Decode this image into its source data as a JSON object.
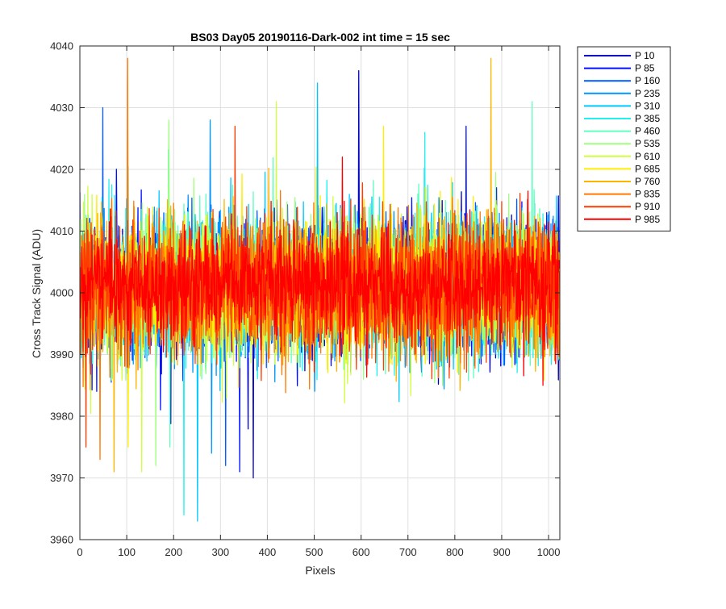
{
  "chart_data": {
    "type": "line",
    "title": "BS03 Day05 20190116-Dark-002 int time = 15 sec",
    "xlabel": "Pixels",
    "ylabel": "Cross Track Signal (ADU)",
    "xlim": [
      0,
      1024
    ],
    "ylim": [
      3960,
      4040
    ],
    "xticks": [
      0,
      100,
      200,
      300,
      400,
      500,
      600,
      700,
      800,
      900,
      1000
    ],
    "yticks": [
      3960,
      3970,
      3980,
      3990,
      4000,
      4010,
      4020,
      4030,
      4040
    ],
    "grid": true,
    "legend_position": "outside-top-right",
    "series": [
      {
        "name": "P 10",
        "color": "#0000c8",
        "mean": 4001,
        "spread": 5.5,
        "min": 3970,
        "max": 4036
      },
      {
        "name": "P 85",
        "color": "#0010ff",
        "mean": 4001,
        "spread": 5.5,
        "min": 3971,
        "max": 4027
      },
      {
        "name": "P 160",
        "color": "#005aff",
        "mean": 4001,
        "spread": 5.5,
        "min": 3972,
        "max": 4030
      },
      {
        "name": "P 235",
        "color": "#0096ff",
        "mean": 4001,
        "spread": 5.5,
        "min": 3974,
        "max": 4028
      },
      {
        "name": "P 310",
        "color": "#00c8ff",
        "mean": 4001,
        "spread": 5.5,
        "min": 3963,
        "max": 4034
      },
      {
        "name": "P 385",
        "color": "#20f0f0",
        "mean": 4001,
        "spread": 5.5,
        "min": 3964,
        "max": 4026
      },
      {
        "name": "P 460",
        "color": "#60ffc0",
        "mean": 4001,
        "spread": 5.5,
        "min": 3975,
        "max": 4031
      },
      {
        "name": "P 535",
        "color": "#a0ff80",
        "mean": 4001,
        "spread": 5.5,
        "min": 3972,
        "max": 4028
      },
      {
        "name": "P 610",
        "color": "#d0ff40",
        "mean": 4001,
        "spread": 5.5,
        "min": 3971,
        "max": 4031
      },
      {
        "name": "P 685",
        "color": "#ffee00",
        "mean": 4001,
        "spread": 5.5,
        "min": 3975,
        "max": 4027
      },
      {
        "name": "P 760",
        "color": "#ffb400",
        "mean": 4001,
        "spread": 5.5,
        "min": 3971,
        "max": 4038
      },
      {
        "name": "P 835",
        "color": "#ff7800",
        "mean": 4001,
        "spread": 5.5,
        "min": 3973,
        "max": 4038
      },
      {
        "name": "P 910",
        "color": "#ff3c00",
        "mean": 4001,
        "spread": 5.5,
        "min": 3975,
        "max": 4027
      },
      {
        "name": "P 985",
        "color": "#ff0000",
        "mean": 4001,
        "spread": 4.5,
        "min": 3985,
        "max": 4022
      }
    ]
  }
}
